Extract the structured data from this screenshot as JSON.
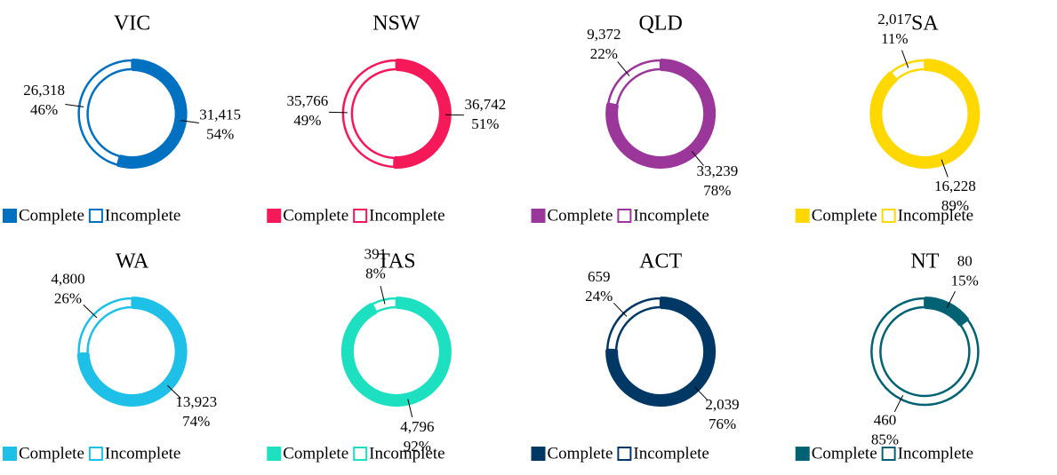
{
  "chart_data": [
    {
      "type": "pie",
      "title": "VIC",
      "categories": [
        "Complete",
        "Incomplete"
      ],
      "values": [
        31415,
        26318
      ],
      "value_labels": [
        "31,415",
        "26,318"
      ],
      "percents": [
        54,
        46
      ],
      "percent_labels": [
        "54%",
        "46%"
      ],
      "color": "#0070c0"
    },
    {
      "type": "pie",
      "title": "NSW",
      "categories": [
        "Complete",
        "Incomplete"
      ],
      "values": [
        36742,
        35766
      ],
      "value_labels": [
        "36,742",
        "35,766"
      ],
      "percents": [
        51,
        49
      ],
      "percent_labels": [
        "51%",
        "49%"
      ],
      "color": "#f5195a"
    },
    {
      "type": "pie",
      "title": "QLD",
      "categories": [
        "Complete",
        "Incomplete"
      ],
      "values": [
        33239,
        9372
      ],
      "value_labels": [
        "33,239",
        "9,372"
      ],
      "percents": [
        78,
        22
      ],
      "percent_labels": [
        "78%",
        "22%"
      ],
      "color": "#9b379b"
    },
    {
      "type": "pie",
      "title": "SA",
      "categories": [
        "Complete",
        "Incomplete"
      ],
      "values": [
        16228,
        2017
      ],
      "value_labels": [
        "16,228",
        "2,017"
      ],
      "percents": [
        89,
        11
      ],
      "percent_labels": [
        "89%",
        "11%"
      ],
      "color": "#ffd800"
    },
    {
      "type": "pie",
      "title": "WA",
      "categories": [
        "Complete",
        "Incomplete"
      ],
      "values": [
        13923,
        4800
      ],
      "value_labels": [
        "13,923",
        "4,800"
      ],
      "percents": [
        74,
        26
      ],
      "percent_labels": [
        "74%",
        "26%"
      ],
      "color": "#1ec0e8"
    },
    {
      "type": "pie",
      "title": "TAS",
      "categories": [
        "Complete",
        "Incomplete"
      ],
      "values": [
        4796,
        391
      ],
      "value_labels": [
        "4,796",
        "391"
      ],
      "percents": [
        92,
        8
      ],
      "percent_labels": [
        "92%",
        "8%"
      ],
      "color": "#1de0c0"
    },
    {
      "type": "pie",
      "title": "ACT",
      "categories": [
        "Complete",
        "Incomplete"
      ],
      "values": [
        2039,
        659
      ],
      "value_labels": [
        "2,039",
        "659"
      ],
      "percents": [
        76,
        24
      ],
      "percent_labels": [
        "76%",
        "24%"
      ],
      "color": "#003865"
    },
    {
      "type": "pie",
      "title": "NT",
      "categories": [
        "Complete",
        "Incomplete"
      ],
      "values": [
        80,
        460
      ],
      "value_labels": [
        "80",
        "460"
      ],
      "percents": [
        15,
        85
      ],
      "percent_labels": [
        "15%",
        "85%"
      ],
      "color": "#006272"
    }
  ]
}
